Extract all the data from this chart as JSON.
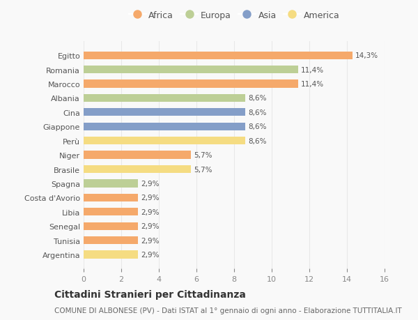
{
  "countries": [
    "Egitto",
    "Romania",
    "Marocco",
    "Albania",
    "Cina",
    "Giappone",
    "Perù",
    "Niger",
    "Brasile",
    "Spagna",
    "Costa d'Avorio",
    "Libia",
    "Senegal",
    "Tunisia",
    "Argentina"
  ],
  "values": [
    14.3,
    11.4,
    11.4,
    8.6,
    8.6,
    8.6,
    8.6,
    5.7,
    5.7,
    2.9,
    2.9,
    2.9,
    2.9,
    2.9,
    2.9
  ],
  "continents": [
    "Africa",
    "Europa",
    "Africa",
    "Europa",
    "Asia",
    "Asia",
    "America",
    "Africa",
    "America",
    "Europa",
    "Africa",
    "Africa",
    "Africa",
    "Africa",
    "America"
  ],
  "labels": [
    "14,3%",
    "11,4%",
    "11,4%",
    "8,6%",
    "8,6%",
    "8,6%",
    "8,6%",
    "5,7%",
    "5,7%",
    "2,9%",
    "2,9%",
    "2,9%",
    "2,9%",
    "2,9%",
    "2,9%"
  ],
  "continent_colors": {
    "Africa": "#F5A96B",
    "Europa": "#BDCF96",
    "Asia": "#849EC8",
    "America": "#F5DC82"
  },
  "legend_order": [
    "Africa",
    "Europa",
    "Asia",
    "America"
  ],
  "xlim": [
    0,
    16
  ],
  "xticks": [
    0,
    2,
    4,
    6,
    8,
    10,
    12,
    14,
    16
  ],
  "title": "Cittadini Stranieri per Cittadinanza",
  "subtitle": "COMUNE DI ALBONESE (PV) - Dati ISTAT al 1° gennaio di ogni anno - Elaborazione TUTTITALIA.IT",
  "background_color": "#f9f9f9",
  "bar_height": 0.55,
  "title_fontsize": 10,
  "subtitle_fontsize": 7.5,
  "label_fontsize": 7.5,
  "tick_fontsize": 8,
  "legend_fontsize": 9,
  "grid_color": "#e8e8e8"
}
